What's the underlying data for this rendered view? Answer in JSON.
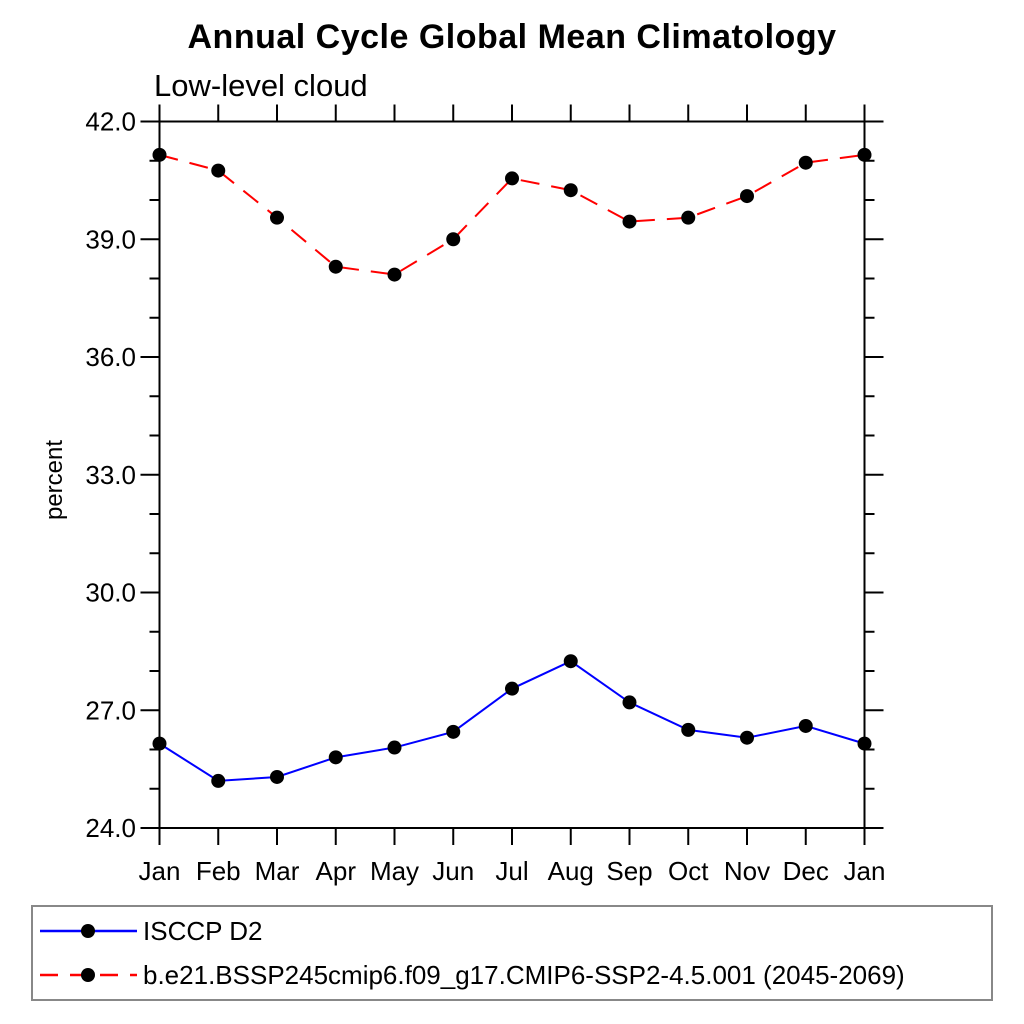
{
  "title": "Annual Cycle Global Mean Climatology",
  "subtitle": "Low-level cloud",
  "ylabel": "percent",
  "legend": {
    "items": [
      {
        "label": "ISCCP D2",
        "color": "#0000ff",
        "line_style": "solid",
        "marker": "black-dot"
      },
      {
        "label": "b.e21.BSSP245cmip6.f09_g17.CMIP6-SSP2-4.5.001 (2045-2069)",
        "color": "#ff0000",
        "line_style": "dashed",
        "marker": "black-dot"
      }
    ]
  },
  "chart_data": {
    "type": "line",
    "title": "Annual Cycle Global Mean Climatology",
    "subtitle": "Low-level cloud",
    "xlabel": "",
    "ylabel": "percent",
    "categories": [
      "Jan",
      "Feb",
      "Mar",
      "Apr",
      "May",
      "Jun",
      "Jul",
      "Aug",
      "Sep",
      "Oct",
      "Nov",
      "Dec",
      "Jan"
    ],
    "series": [
      {
        "name": "ISCCP D2",
        "color": "#0000ff",
        "line_style": "solid",
        "marker": "black-dot",
        "values": [
          26.15,
          25.2,
          25.3,
          25.8,
          26.05,
          26.45,
          27.55,
          28.25,
          27.2,
          26.5,
          26.3,
          26.6,
          26.15
        ]
      },
      {
        "name": "b.e21.BSSP245cmip6.f09_g17.CMIP6-SSP2-4.5.001 (2045-2069)",
        "color": "#ff0000",
        "line_style": "dashed",
        "marker": "black-dot",
        "values": [
          41.15,
          40.75,
          39.55,
          38.3,
          38.1,
          39.0,
          40.55,
          40.25,
          39.45,
          39.55,
          40.1,
          40.95,
          41.15
        ]
      }
    ],
    "ylim": [
      24.0,
      42.0
    ],
    "yticks_major": [
      42.0,
      39.0,
      36.0,
      33.0,
      30.0,
      27.0,
      24.0
    ],
    "ytick_labels": [
      "42.0",
      "39.0",
      "36.0",
      "33.0",
      "30.0",
      "27.0",
      "24.0"
    ],
    "ytick_minor_step": 1.0,
    "grid": false,
    "legend_position": "bottom",
    "marker_color": "#000000",
    "axis_color": "#000000"
  }
}
